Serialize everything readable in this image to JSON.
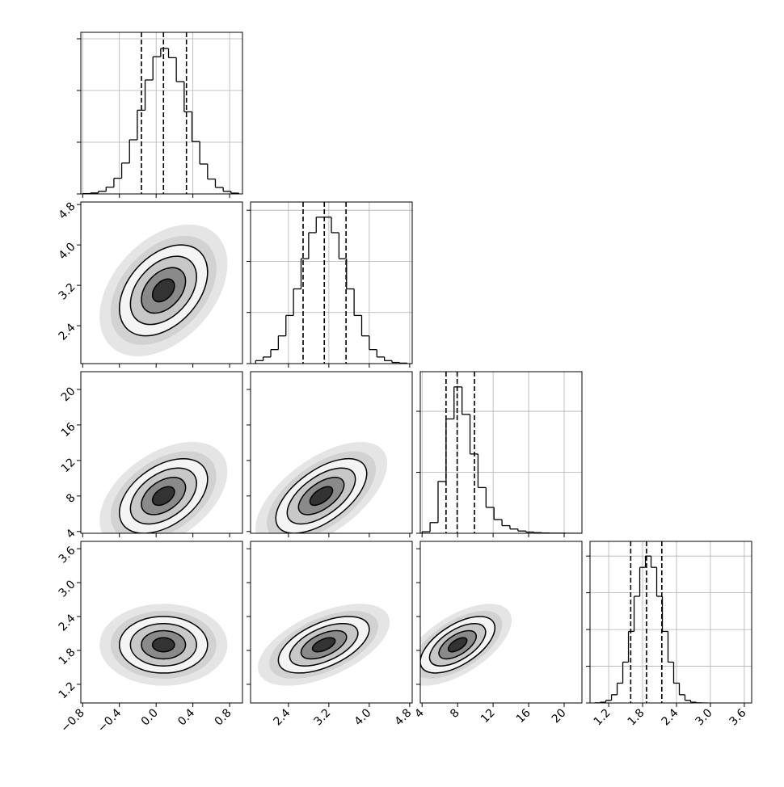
{
  "chart_data": {
    "type": "corner",
    "color": "#000000",
    "grid": true,
    "levels": [
      0.5,
      1,
      1.5,
      2
    ],
    "params": [
      {
        "xlim": [
          -0.82,
          0.94
        ],
        "ticks": [
          {
            "value": -0.8,
            "label": "−0.8"
          },
          {
            "value": -0.4,
            "label": "−0.4"
          },
          {
            "value": 0,
            "label": "0.0"
          },
          0.4,
          0.8
        ],
        "quantiles": [
          -0.16,
          0.08,
          0.33
        ],
        "hist": {
          "bins": [
            -0.8,
            -0.715,
            -0.63,
            -0.545,
            -0.46,
            -0.375,
            -0.29,
            -0.205,
            -0.12,
            -0.035,
            0.05,
            0.135,
            0.22,
            0.305,
            0.39,
            0.475,
            0.56,
            0.645,
            0.73,
            0.815,
            0.9
          ],
          "values": [
            2,
            6,
            16,
            42,
            97,
            191,
            335,
            518,
            705,
            849,
            900,
            843,
            695,
            508,
            324,
            185,
            92,
            40,
            16,
            5
          ],
          "ylim": [
            0,
            1000
          ],
          "yticks": [
            0,
            320,
            640,
            960
          ]
        }
      },
      {
        "xlim": [
          1.65,
          4.85
        ],
        "ticks": [
          2.4,
          3.2,
          {
            "value": 4,
            "label": "4.0"
          },
          4.8
        ],
        "quantiles": [
          2.69,
          3.11,
          3.54
        ],
        "hist": {
          "bins": [
            1.75,
            1.9,
            2.05,
            2.2,
            2.35,
            2.5,
            2.65,
            2.8,
            2.95,
            3.1,
            3.25,
            3.4,
            3.55,
            3.7,
            3.85,
            4.0,
            4.15,
            4.3,
            4.45,
            4.6,
            4.75
          ],
          "values": [
            18,
            40,
            85,
            168,
            292,
            453,
            636,
            794,
            888,
            888,
            794,
            636,
            453,
            292,
            168,
            85,
            40,
            18,
            7,
            3
          ],
          "ylim": [
            0,
            980
          ],
          "yticks": [
            0,
            310,
            620,
            930
          ]
        }
      },
      {
        "xlim": [
          3.8,
          22
        ],
        "ticks": [
          4,
          8,
          12,
          16,
          20
        ],
        "quantiles": [
          6.7,
          7.95,
          9.9
        ],
        "hist": {
          "bins": [
            4,
            4.9,
            5.8,
            6.7,
            7.6,
            8.5,
            9.4,
            10.3,
            11.2,
            12.1,
            13,
            13.9,
            14.8,
            15.7,
            16.6,
            17.5,
            18.4,
            19.3,
            20.2,
            21.1,
            22
          ],
          "values": [
            10,
            70,
            340,
            750,
            960,
            780,
            520,
            300,
            170,
            90,
            50,
            28,
            15,
            8,
            4,
            2,
            1,
            1,
            0,
            0
          ],
          "ylim": [
            0,
            1060
          ],
          "yticks": [
            0,
            400,
            800
          ]
        }
      },
      {
        "xlim": [
          0.87,
          3.73
        ],
        "ticks": [
          1.2,
          1.8,
          2.4,
          {
            "value": 3,
            "label": "3.0"
          },
          3.6
        ],
        "quantiles": [
          1.59,
          1.87,
          2.14
        ],
        "hist": {
          "bins": [
            0.95,
            1.05,
            1.15,
            1.25,
            1.35,
            1.45,
            1.55,
            1.65,
            1.75,
            1.85,
            1.95,
            2.05,
            2.15,
            2.25,
            2.35,
            2.45,
            2.55,
            2.65,
            2.75,
            2.85,
            2.95
          ],
          "values": [
            1,
            5,
            18,
            56,
            135,
            278,
            487,
            726,
            923,
            1000,
            923,
            726,
            487,
            278,
            135,
            56,
            18,
            5,
            1,
            0
          ],
          "ylim": [
            0,
            1100
          ],
          "yticks": [
            0,
            250,
            500,
            750,
            1000
          ]
        }
      }
    ],
    "pairs": [
      {
        "x": 0,
        "y": 1,
        "mean": [
          0.08,
          3.1
        ],
        "sd": [
          0.24,
          0.45
        ],
        "rho": 0.4
      },
      {
        "x": 0,
        "y": 2,
        "mean": [
          0.08,
          8
        ],
        "sd": [
          0.24,
          2.1
        ],
        "rho": 0.45
      },
      {
        "x": 1,
        "y": 2,
        "mean": [
          3.05,
          8
        ],
        "sd": [
          0.45,
          2.1
        ],
        "rho": 0.6
      },
      {
        "x": 0,
        "y": 3,
        "mean": [
          0.08,
          1.9
        ],
        "sd": [
          0.24,
          0.25
        ],
        "rho": 0
      },
      {
        "x": 1,
        "y": 3,
        "mean": [
          3.1,
          1.9
        ],
        "sd": [
          0.45,
          0.25
        ],
        "rho": 0.55
      },
      {
        "x": 2,
        "y": 3,
        "mean": [
          8,
          1.9
        ],
        "sd": [
          2.1,
          0.25
        ],
        "rho": 0.6
      }
    ]
  }
}
